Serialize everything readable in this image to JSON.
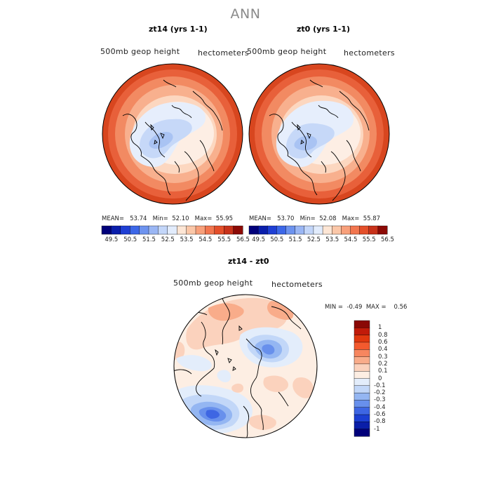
{
  "title": "ANN",
  "panels": [
    {
      "title": "zt14 (yrs 1-1)",
      "variable": "500mb geop height",
      "units": "hectometers",
      "stats": {
        "mean_label": "MEAN=",
        "mean": "53.74",
        "min_label": "Min=",
        "min": "52.10",
        "max_label": "Max=",
        "max": "55.95"
      }
    },
    {
      "title": "zt0 (yrs 1-1)",
      "variable": "500mb geop height",
      "units": "hectometers",
      "stats": {
        "mean_label": "MEAN=",
        "mean": "53.70",
        "min_label": "Min=",
        "min": "52.08",
        "max_label": "Max=",
        "max": "55.87"
      }
    }
  ],
  "colorbar": {
    "labels": [
      "49.5",
      "50.5",
      "51.5",
      "52.5",
      "53.5",
      "54.5",
      "55.5",
      "56.5"
    ],
    "colors": [
      "#00007a",
      "#0a1eab",
      "#1f3fd4",
      "#3c67e8",
      "#6d93ef",
      "#9ab6f4",
      "#c3d6f9",
      "#e2ecfc",
      "#fde6d5",
      "#fbc7a8",
      "#f8a07b",
      "#f2764f",
      "#e44f2a",
      "#c8321a",
      "#8c0a05"
    ]
  },
  "diff_panel": {
    "title": "zt14 - zt0",
    "variable": "500mb geop height",
    "units": "hectometers",
    "stats": {
      "min_label": "MIN =",
      "min": "-0.49",
      "max_label": "MAX =",
      "max": "0.56"
    }
  },
  "diff_colorbar": {
    "labels": [
      "1",
      "0.8",
      "0.6",
      "0.4",
      "0.3",
      "0.2",
      "0.1",
      "0",
      "-0.1",
      "-0.2",
      "-0.3",
      "-0.4",
      "-0.6",
      "-0.8",
      "-1"
    ],
    "colors": [
      "#8a0805",
      "#c11b0a",
      "#e0380f",
      "#f35a2e",
      "#f7865f",
      "#f9ac8a",
      "#fbd2bd",
      "#fdeee3",
      "#e3edfb",
      "#c2d7f8",
      "#94b6f2",
      "#6890ec",
      "#3e66e3",
      "#1c3fd2",
      "#0a1ea8",
      "#01007a"
    ]
  },
  "icons": [
    "polar-map-icon",
    "coastline-icon"
  ]
}
